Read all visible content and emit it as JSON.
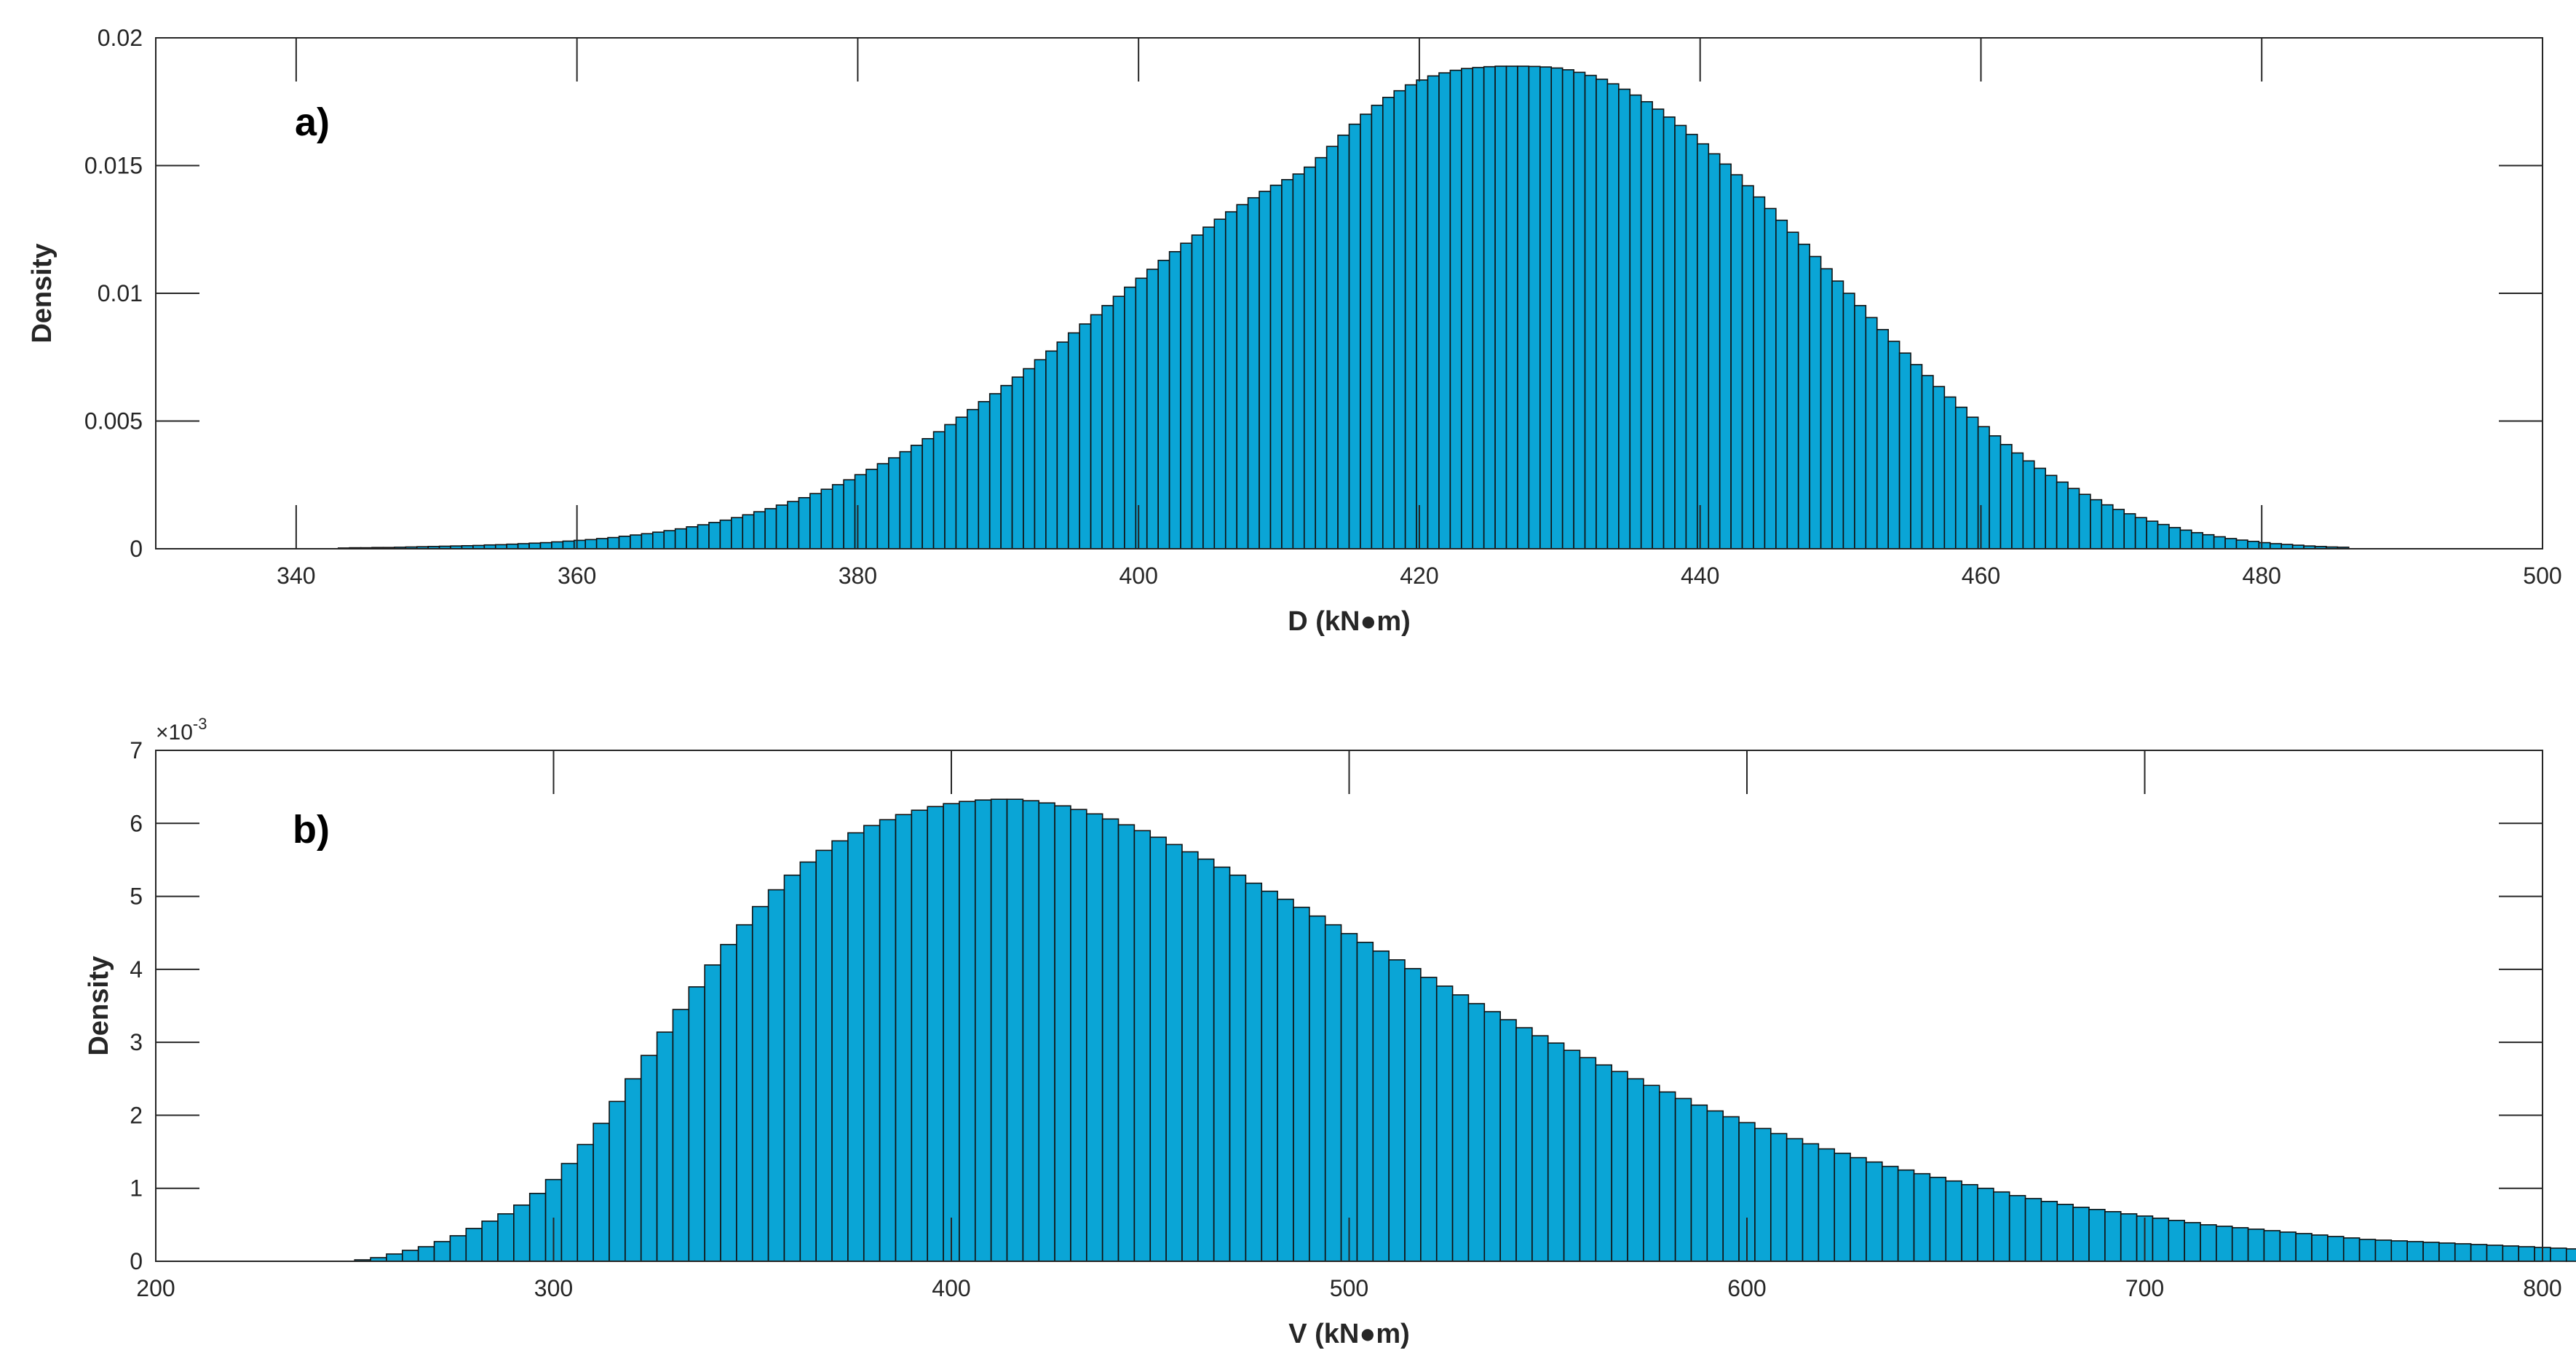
{
  "colors": {
    "bar_fill": "#0aa5d6",
    "bar_edge": "#111111",
    "axis": "#262626",
    "background": "#ffffff"
  },
  "chart_data": [
    {
      "type": "bar",
      "panel_label": "a)",
      "xlabel": "D (kN●m)",
      "ylabel": "Density",
      "xlim": [
        330,
        500
      ],
      "ylim": [
        0,
        0.02
      ],
      "x_ticks": [
        340,
        360,
        380,
        400,
        420,
        440,
        460,
        480,
        500
      ],
      "y_ticks": [
        0,
        0.005,
        0.01,
        0.015,
        0.02
      ],
      "y_tick_labels": [
        "0",
        "0.005",
        "0.01",
        "0.015",
        "0.02"
      ],
      "y_multiplier": "",
      "box": true,
      "grid": false,
      "legend": "none",
      "bin_start": 343,
      "bin_width": 0.8,
      "values": [
        3e-05,
        4e-05,
        4e-05,
        5e-05,
        5e-05,
        6e-05,
        7e-05,
        8e-05,
        9e-05,
        0.0001,
        0.00011,
        0.00012,
        0.00013,
        0.00015,
        0.00016,
        0.00018,
        0.0002,
        0.00022,
        0.00024,
        0.00027,
        0.0003,
        0.00033,
        0.00036,
        0.0004,
        0.00044,
        0.00049,
        0.00054,
        0.00059,
        0.00065,
        0.00071,
        0.00078,
        0.00086,
        0.00094,
        0.00103,
        0.00112,
        0.00122,
        0.00133,
        0.00145,
        0.00157,
        0.00171,
        0.00185,
        0.002,
        0.00216,
        0.00233,
        0.00251,
        0.0027,
        0.0029,
        0.00311,
        0.00333,
        0.00356,
        0.0038,
        0.00405,
        0.00431,
        0.00458,
        0.00486,
        0.00515,
        0.00545,
        0.00576,
        0.00607,
        0.00639,
        0.00672,
        0.00705,
        0.0074,
        0.00774,
        0.00809,
        0.00845,
        0.0088,
        0.00916,
        0.00952,
        0.00988,
        0.01024,
        0.01059,
        0.01094,
        0.01129,
        0.01163,
        0.01196,
        0.01228,
        0.01259,
        0.0129,
        0.01319,
        0.01347,
        0.01374,
        0.01399,
        0.01423,
        0.01445,
        0.01467,
        0.01494,
        0.01531,
        0.01575,
        0.01619,
        0.01662,
        0.01701,
        0.01736,
        0.01767,
        0.01793,
        0.01816,
        0.01835,
        0.01851,
        0.01863,
        0.01873,
        0.0188,
        0.01884,
        0.01887,
        0.01889,
        0.01889,
        0.01889,
        0.01888,
        0.01886,
        0.01882,
        0.01875,
        0.01865,
        0.01853,
        0.01838,
        0.0182,
        0.01799,
        0.01776,
        0.0175,
        0.01721,
        0.0169,
        0.01657,
        0.01622,
        0.01585,
        0.01546,
        0.01506,
        0.01464,
        0.01421,
        0.01377,
        0.01332,
        0.01286,
        0.01239,
        0.01192,
        0.01144,
        0.01096,
        0.01048,
        0.01,
        0.00952,
        0.00905,
        0.00858,
        0.00812,
        0.00766,
        0.00721,
        0.00678,
        0.00635,
        0.00594,
        0.00554,
        0.00515,
        0.00478,
        0.00442,
        0.00408,
        0.00375,
        0.00344,
        0.00315,
        0.00287,
        0.00261,
        0.00236,
        0.00213,
        0.00192,
        0.00172,
        0.00154,
        0.00137,
        0.00122,
        0.00108,
        0.00095,
        0.00083,
        0.00073,
        0.00063,
        0.00055,
        0.00047,
        0.0004,
        0.00034,
        0.00029,
        0.00024,
        0.0002,
        0.00017,
        0.00014,
        0.00011,
        9e-05,
        7e-05,
        6e-05
      ]
    },
    {
      "type": "bar",
      "panel_label": "b)",
      "xlabel": "V (kN●m)",
      "ylabel": "Density",
      "xlim": [
        200,
        800
      ],
      "ylim": [
        0,
        0.007
      ],
      "x_ticks": [
        200,
        300,
        400,
        500,
        600,
        700,
        800
      ],
      "y_ticks": [
        0,
        0.001,
        0.002,
        0.003,
        0.004,
        0.005,
        0.006,
        0.007
      ],
      "y_tick_labels": [
        "0",
        "1",
        "2",
        "3",
        "4",
        "5",
        "6",
        "7"
      ],
      "y_multiplier": "×10",
      "y_multiplier_exponent": "-3",
      "box": true,
      "grid": false,
      "legend": "none",
      "bin_start": 250,
      "bin_width": 4,
      "values": [
        2e-05,
        5e-05,
        0.0001,
        0.00015,
        0.0002,
        0.00027,
        0.00035,
        0.00045,
        0.00055,
        0.00065,
        0.00077,
        0.00093,
        0.00112,
        0.00134,
        0.0016,
        0.00189,
        0.00219,
        0.0025,
        0.00282,
        0.00314,
        0.00345,
        0.00376,
        0.00406,
        0.00434,
        0.00461,
        0.00486,
        0.00509,
        0.00529,
        0.00547,
        0.00563,
        0.00576,
        0.00587,
        0.00597,
        0.00605,
        0.00612,
        0.00618,
        0.00623,
        0.00627,
        0.0063,
        0.00632,
        0.00633,
        0.00633,
        0.00631,
        0.00628,
        0.00624,
        0.00619,
        0.00613,
        0.00606,
        0.00598,
        0.0059,
        0.00581,
        0.00571,
        0.00561,
        0.00551,
        0.0054,
        0.00529,
        0.00518,
        0.00507,
        0.00496,
        0.00485,
        0.00473,
        0.00461,
        0.00449,
        0.00437,
        0.00425,
        0.00413,
        0.00401,
        0.00389,
        0.00377,
        0.00365,
        0.00353,
        0.00342,
        0.00331,
        0.0032,
        0.00309,
        0.00299,
        0.00289,
        0.00279,
        0.00269,
        0.0026,
        0.0025,
        0.00241,
        0.00232,
        0.00223,
        0.00214,
        0.00206,
        0.00198,
        0.0019,
        0.00182,
        0.00175,
        0.00168,
        0.00161,
        0.00154,
        0.00148,
        0.00142,
        0.00136,
        0.0013,
        0.00125,
        0.0012,
        0.00115,
        0.0011,
        0.00105,
        0.001,
        0.00095,
        0.0009,
        0.00086,
        0.00082,
        0.00078,
        0.00074,
        0.00071,
        0.00068,
        0.00065,
        0.00062,
        0.00059,
        0.00056,
        0.00053,
        0.0005,
        0.00048,
        0.00046,
        0.00044,
        0.00042,
        0.0004,
        0.00038,
        0.00036,
        0.00034,
        0.00032,
        0.0003,
        0.00029,
        0.00028,
        0.00027,
        0.00026,
        0.00025,
        0.00024,
        0.00023,
        0.00022,
        0.00021,
        0.0002,
        0.00019,
        0.00018,
        0.00017,
        0.00016,
        0.00015,
        0.00014,
        0.00013,
        0.00012,
        0.00011,
        0.0001,
        0.0001,
        9e-05,
        9e-05,
        8e-05,
        8e-05,
        7e-05,
        7e-05,
        6e-05,
        6e-05,
        5e-05,
        5e-05,
        4e-05,
        4e-05,
        3e-05,
        3e-05,
        3e-05,
        2e-05,
        2e-05,
        2e-05,
        2e-05,
        1e-05,
        1e-05,
        1e-05,
        1e-05,
        1e-05,
        1e-05,
        1e-05,
        1e-05,
        1e-05,
        1e-05,
        1e-05,
        1e-05,
        1e-05,
        1e-05,
        1e-05,
        1e-05,
        1e-05,
        1e-05
      ]
    }
  ]
}
